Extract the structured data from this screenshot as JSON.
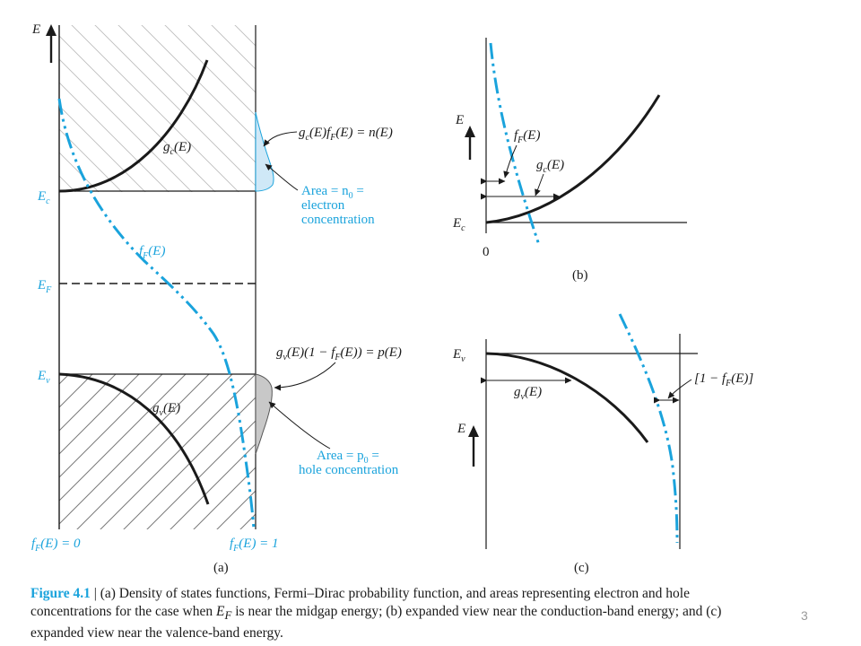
{
  "colors": {
    "ink": "#1a1a1a",
    "accent": "#1aa3dc",
    "electron_fill": "#cfe8f7",
    "hole_fill": "#c8c8c8"
  },
  "panel_a": {
    "axis_label": "E",
    "levels": {
      "Ec": "E",
      "Ec_sub": "c",
      "EF": "E",
      "EF_sub": "F",
      "Ev": "E",
      "Ev_sub": "v"
    },
    "curve_gc": {
      "main": "g",
      "sub": "c",
      "tail": "(E)"
    },
    "curve_gv": {
      "main": "g",
      "sub": "v",
      "tail": "(E)"
    },
    "curve_fF": {
      "main": "f",
      "sub": "F",
      "tail": "(E)"
    },
    "electron_product": {
      "p1": "g",
      "s1": "c",
      "p2": "(E)f",
      "s2": "F",
      "p3": "(E) = n(E)"
    },
    "electron_area": {
      "l1_pre": "Area = n",
      "l1_sub": "0",
      "l1_post": " =",
      "l2": "electron",
      "l3": "concentration"
    },
    "hole_product": {
      "p1": "g",
      "s1": "v",
      "p2": "(E)(1 − f",
      "s2": "F",
      "p3": "(E)) = p(E)"
    },
    "hole_area": {
      "l1_pre": "Area = p",
      "l1_sub": "0",
      "l1_post": " =",
      "l2": "hole concentration"
    },
    "bottom_left": {
      "main": "f",
      "sub": "F",
      "tail": "(E) = 0"
    },
    "bottom_right": {
      "main": "f",
      "sub": "F",
      "tail": "(E) = 1"
    },
    "label": "(a)"
  },
  "panel_b": {
    "axis_label": "E",
    "level": {
      "main": "E",
      "sub": "c"
    },
    "curve_fF": {
      "main": "f",
      "sub": "F",
      "tail": "(E)"
    },
    "curve_gc": {
      "main": "g",
      "sub": "c",
      "tail": "(E)"
    },
    "origin": "0",
    "label": "(b)"
  },
  "panel_c": {
    "axis_label": "E",
    "level": {
      "main": "E",
      "sub": "v"
    },
    "curve_gv": {
      "main": "g",
      "sub": "v",
      "tail": "(E)"
    },
    "bracket": {
      "pre": "[1 − f",
      "sub": "F",
      "post": "(E)]"
    },
    "label": "(c)"
  },
  "caption": {
    "title": "Figure 4.1",
    "sep": " | ",
    "text_1": "(a) Density of states functions, Fermi–Dirac probability function, and areas representing electron and hole concentrations for the case when ",
    "ef_main": "E",
    "ef_sub": "F",
    "text_2": " is near the midgap energy; (b) expanded view near the conduction-band energy; and (c) expanded view near the valence-band energy."
  },
  "page_number": "3"
}
